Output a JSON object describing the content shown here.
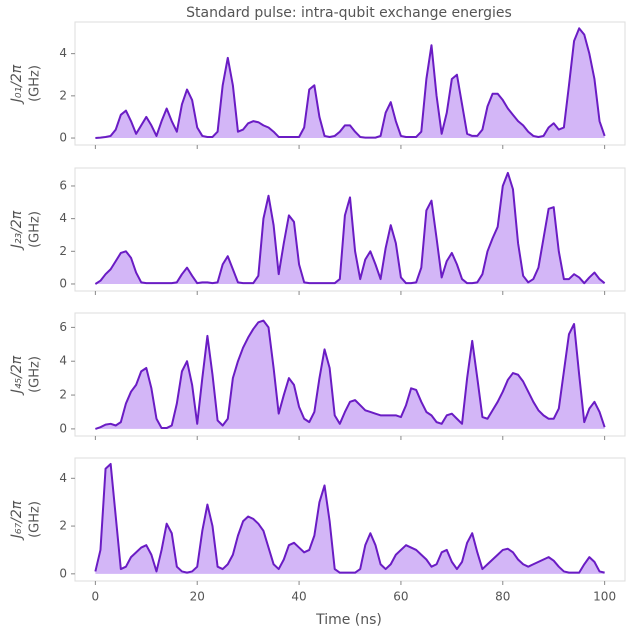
{
  "chart_data": {
    "type": "line",
    "title": "Standard pulse: intra-qubit exchange energies",
    "xlabel": "Time (ns)",
    "xlim": [
      -4,
      104
    ],
    "xticks": [
      0,
      20,
      40,
      60,
      80,
      100
    ],
    "x": [
      0,
      1,
      2,
      3,
      4,
      5,
      6,
      7,
      8,
      9,
      10,
      11,
      12,
      13,
      14,
      15,
      16,
      17,
      18,
      19,
      20,
      21,
      22,
      23,
      24,
      25,
      26,
      27,
      28,
      29,
      30,
      31,
      32,
      33,
      34,
      35,
      36,
      37,
      38,
      39,
      40,
      41,
      42,
      43,
      44,
      45,
      46,
      47,
      48,
      49,
      50,
      51,
      52,
      53,
      54,
      55,
      56,
      57,
      58,
      59,
      60,
      61,
      62,
      63,
      64,
      65,
      66,
      67,
      68,
      69,
      70,
      71,
      72,
      73,
      74,
      75,
      76,
      77,
      78,
      79,
      80,
      81,
      82,
      83,
      84,
      85,
      86,
      87,
      88,
      89,
      90,
      91,
      92,
      93,
      94,
      95,
      96,
      97,
      98,
      99,
      100
    ],
    "panels": [
      {
        "ylabel": "J₀₁/2π",
        "yunit": "(GHz)",
        "ylim": [
          -0.33,
          5.5
        ],
        "yticks": [
          0,
          2,
          4
        ],
        "series": [
          {
            "color": "#6a1cc4",
            "fill_color": "#d3b6f7",
            "values": [
              0,
              0.02,
              0.05,
              0.1,
              0.4,
              1.1,
              1.3,
              0.8,
              0.2,
              0.6,
              1.0,
              0.6,
              0.1,
              0.8,
              1.4,
              0.8,
              0.3,
              1.6,
              2.3,
              1.8,
              0.5,
              0.1,
              0.05,
              0.05,
              0.3,
              2.5,
              3.8,
              2.5,
              0.3,
              0.4,
              0.7,
              0.8,
              0.75,
              0.6,
              0.5,
              0.3,
              0.05,
              0.05,
              0.05,
              0.05,
              0.05,
              0.5,
              2.3,
              2.5,
              1.0,
              0.1,
              0.05,
              0.1,
              0.3,
              0.6,
              0.6,
              0.3,
              0.05,
              0.02,
              0.02,
              0.02,
              0.1,
              1.2,
              1.7,
              0.8,
              0.1,
              0.05,
              0.05,
              0.05,
              0.3,
              2.8,
              4.4,
              2.0,
              0.2,
              1.2,
              2.8,
              3.0,
              1.6,
              0.2,
              0.1,
              0.1,
              0.4,
              1.5,
              2.1,
              2.1,
              1.8,
              1.4,
              1.1,
              0.8,
              0.6,
              0.3,
              0.1,
              0.05,
              0.1,
              0.5,
              0.7,
              0.4,
              0.5,
              2.5,
              4.6,
              5.2,
              4.9,
              4.0,
              2.8,
              0.8,
              0.1
            ]
          }
        ]
      },
      {
        "ylabel": "J₂₃/2π",
        "yunit": "(GHz)",
        "ylim": [
          -0.43,
          7.1
        ],
        "yticks": [
          0,
          2,
          4,
          6
        ],
        "series": [
          {
            "color": "#6a1cc4",
            "fill_color": "#d3b6f7",
            "values": [
              0,
              0.2,
              0.6,
              0.9,
              1.4,
              1.9,
              2.0,
              1.6,
              0.7,
              0.1,
              0.05,
              0.05,
              0.05,
              0.05,
              0.05,
              0.05,
              0.1,
              0.6,
              1.0,
              0.5,
              0.05,
              0.1,
              0.1,
              0.05,
              0.1,
              1.2,
              1.7,
              0.9,
              0.1,
              0.05,
              0.05,
              0.05,
              0.5,
              4.0,
              5.4,
              3.6,
              0.6,
              2.5,
              4.2,
              3.8,
              1.2,
              0.1,
              0.05,
              0.05,
              0.05,
              0.05,
              0.05,
              0.05,
              0.3,
              4.2,
              5.3,
              2.0,
              0.3,
              1.5,
              2.0,
              1.2,
              0.3,
              2.2,
              3.6,
              2.5,
              0.4,
              0.05,
              0.05,
              0.1,
              1.0,
              4.5,
              5.1,
              2.8,
              0.4,
              1.4,
              1.9,
              1.2,
              0.3,
              0.05,
              0.05,
              0.1,
              0.6,
              2.0,
              2.8,
              3.5,
              6.0,
              6.8,
              5.8,
              2.5,
              0.5,
              0.1,
              0.3,
              1.0,
              2.8,
              4.6,
              4.7,
              2.0,
              0.3,
              0.3,
              0.6,
              0.4,
              0.05,
              0.4,
              0.7,
              0.3,
              0.05
            ]
          }
        ]
      },
      {
        "ylabel": "J₄₅/2π",
        "yunit": "(GHz)",
        "ylim": [
          -0.42,
          6.85
        ],
        "yticks": [
          0,
          2,
          4,
          6
        ],
        "series": [
          {
            "color": "#6a1cc4",
            "fill_color": "#d3b6f7",
            "values": [
              0,
              0.1,
              0.25,
              0.3,
              0.2,
              0.4,
              1.5,
              2.2,
              2.6,
              3.4,
              3.6,
              2.4,
              0.6,
              0.05,
              0.05,
              0.2,
              1.5,
              3.4,
              4.0,
              2.6,
              0.3,
              3.0,
              5.5,
              3.2,
              0.5,
              0.2,
              0.6,
              3.0,
              4.0,
              4.8,
              5.4,
              5.9,
              6.3,
              6.4,
              6.0,
              3.6,
              0.9,
              2.0,
              3.0,
              2.6,
              1.3,
              0.6,
              0.4,
              1.0,
              3.0,
              4.7,
              3.6,
              0.8,
              0.3,
              1.0,
              1.6,
              1.7,
              1.4,
              1.1,
              1.0,
              0.9,
              0.8,
              0.8,
              0.8,
              0.8,
              0.7,
              1.4,
              2.4,
              2.3,
              1.6,
              1.0,
              0.8,
              0.4,
              0.3,
              0.8,
              0.9,
              0.6,
              0.3,
              3.0,
              5.2,
              3.0,
              0.7,
              0.6,
              1.1,
              1.6,
              2.2,
              2.9,
              3.3,
              3.2,
              2.8,
              2.2,
              1.6,
              1.1,
              0.8,
              0.6,
              0.6,
              1.2,
              3.4,
              5.6,
              6.2,
              3.2,
              0.4,
              1.2,
              1.6,
              1.0,
              0.1
            ]
          }
        ]
      },
      {
        "ylabel": "J₆₇/2π",
        "yunit": "(GHz)",
        "ylim": [
          -0.3,
          4.85
        ],
        "yticks": [
          0,
          2,
          4
        ],
        "series": [
          {
            "color": "#6a1cc4",
            "fill_color": "#d3b6f7",
            "values": [
              0.1,
              1.0,
              4.4,
              4.6,
              2.4,
              0.2,
              0.3,
              0.7,
              0.9,
              1.1,
              1.2,
              0.8,
              0.1,
              1.0,
              2.1,
              1.7,
              0.3,
              0.1,
              0.05,
              0.1,
              0.3,
              1.8,
              2.9,
              2.0,
              0.3,
              0.2,
              0.4,
              0.8,
              1.6,
              2.2,
              2.4,
              2.3,
              2.1,
              1.8,
              1.1,
              0.4,
              0.2,
              0.6,
              1.2,
              1.3,
              1.1,
              0.9,
              1.0,
              1.6,
              3.0,
              3.7,
              2.2,
              0.2,
              0.05,
              0.05,
              0.05,
              0.05,
              0.2,
              1.2,
              1.7,
              1.2,
              0.4,
              0.2,
              0.4,
              0.8,
              1.0,
              1.2,
              1.1,
              1.0,
              0.8,
              0.6,
              0.3,
              0.4,
              0.9,
              1.0,
              0.5,
              0.2,
              0.5,
              1.3,
              1.7,
              0.9,
              0.2,
              0.4,
              0.6,
              0.8,
              1.0,
              1.05,
              0.9,
              0.6,
              0.4,
              0.3,
              0.4,
              0.5,
              0.6,
              0.7,
              0.55,
              0.3,
              0.1,
              0.05,
              0.05,
              0.05,
              0.4,
              0.7,
              0.5,
              0.1,
              0.05
            ]
          }
        ]
      }
    ]
  }
}
